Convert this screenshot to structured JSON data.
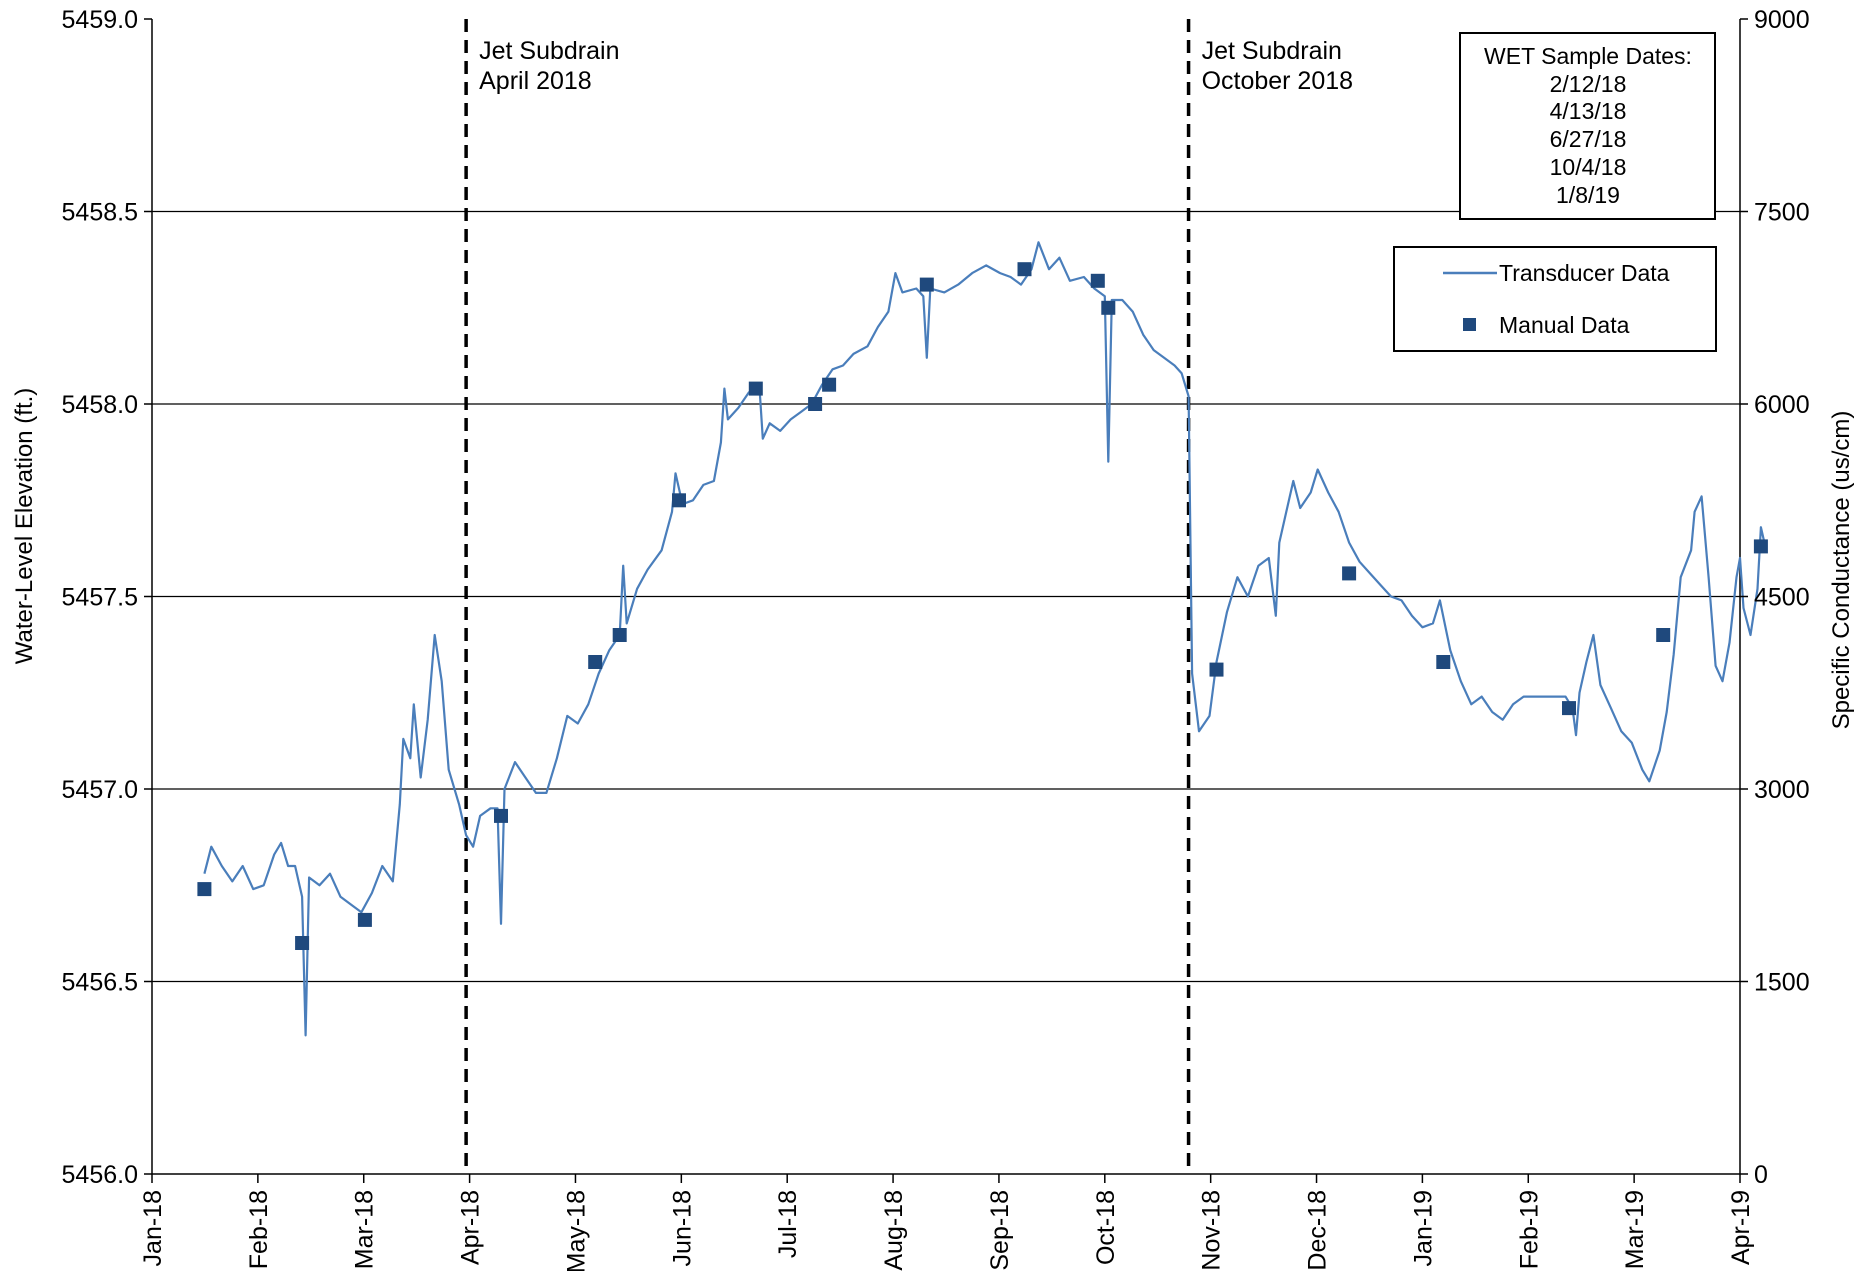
{
  "chart_data": {
    "type": "line",
    "title": "",
    "y_axis_left": {
      "label": "Water-Level Elevation (ft.)",
      "min": 5456.0,
      "max": 5459.0,
      "ticks": [
        "5456.0",
        "5456.5",
        "5457.0",
        "5457.5",
        "5458.0",
        "5458.5",
        "5459.0"
      ]
    },
    "y_axis_right": {
      "label": "Specific Conductance (us/cm)",
      "min": 0,
      "max": 9000,
      "ticks": [
        "0",
        "1500",
        "3000",
        "4500",
        "6000",
        "7500",
        "9000"
      ]
    },
    "x_axis": {
      "type": "date",
      "min": "2018-01-01",
      "max": "2019-04-01",
      "ticks": [
        "Jan-18",
        "Feb-18",
        "Mar-18",
        "Apr-18",
        "May-18",
        "Jun-18",
        "Jul-18",
        "Aug-18",
        "Sep-18",
        "Oct-18",
        "Nov-18",
        "Dec-18",
        "Jan-19",
        "Feb-19",
        "Mar-19",
        "Apr-19"
      ]
    },
    "grid": "horizontal",
    "legend": {
      "position": "top-right",
      "items": [
        "Transducer Data",
        "Manual Data"
      ]
    },
    "annotations": [
      {
        "date": "2018-04-01",
        "line1": "Jet Subdrain",
        "line2": "April 2018"
      },
      {
        "date": "2018-10-25",
        "line1": "Jet Subdrain",
        "line2": "October 2018"
      }
    ],
    "sample_box": {
      "title": "WET Sample Dates:",
      "dates": [
        "2/12/18",
        "4/13/18",
        "6/27/18",
        "10/4/18",
        "1/8/19"
      ]
    },
    "series": [
      {
        "name": "Transducer Data",
        "color": "#4a7ebb",
        "points": [
          [
            "2018-01-16",
            5456.78
          ],
          [
            "2018-01-18",
            5456.85
          ],
          [
            "2018-01-21",
            5456.8
          ],
          [
            "2018-01-24",
            5456.76
          ],
          [
            "2018-01-27",
            5456.8
          ],
          [
            "2018-01-30",
            5456.74
          ],
          [
            "2018-02-02",
            5456.75
          ],
          [
            "2018-02-05",
            5456.83
          ],
          [
            "2018-02-07",
            5456.86
          ],
          [
            "2018-02-09",
            5456.8
          ],
          [
            "2018-02-11",
            5456.8
          ],
          [
            "2018-02-13",
            5456.72
          ],
          [
            "2018-02-14",
            5456.36
          ],
          [
            "2018-02-15",
            5456.77
          ],
          [
            "2018-02-18",
            5456.75
          ],
          [
            "2018-02-21",
            5456.78
          ],
          [
            "2018-02-24",
            5456.72
          ],
          [
            "2018-02-27",
            5456.7
          ],
          [
            "2018-03-02",
            5456.68
          ],
          [
            "2018-03-05",
            5456.73
          ],
          [
            "2018-03-08",
            5456.8
          ],
          [
            "2018-03-11",
            5456.76
          ],
          [
            "2018-03-13",
            5456.96
          ],
          [
            "2018-03-14",
            5457.13
          ],
          [
            "2018-03-16",
            5457.08
          ],
          [
            "2018-03-17",
            5457.22
          ],
          [
            "2018-03-19",
            5457.03
          ],
          [
            "2018-03-21",
            5457.18
          ],
          [
            "2018-03-23",
            5457.4
          ],
          [
            "2018-03-25",
            5457.28
          ],
          [
            "2018-03-27",
            5457.05
          ],
          [
            "2018-03-30",
            5456.96
          ],
          [
            "2018-04-01",
            5456.88
          ],
          [
            "2018-04-03",
            5456.85
          ],
          [
            "2018-04-05",
            5456.93
          ],
          [
            "2018-04-08",
            5456.95
          ],
          [
            "2018-04-10",
            5456.95
          ],
          [
            "2018-04-11",
            5456.65
          ],
          [
            "2018-04-12",
            5457.0
          ],
          [
            "2018-04-15",
            5457.07
          ],
          [
            "2018-04-18",
            5457.03
          ],
          [
            "2018-04-21",
            5456.99
          ],
          [
            "2018-04-24",
            5456.99
          ],
          [
            "2018-04-27",
            5457.08
          ],
          [
            "2018-04-30",
            5457.19
          ],
          [
            "2018-05-03",
            5457.17
          ],
          [
            "2018-05-06",
            5457.22
          ],
          [
            "2018-05-09",
            5457.3
          ],
          [
            "2018-05-12",
            5457.36
          ],
          [
            "2018-05-15",
            5457.4
          ],
          [
            "2018-05-16",
            5457.58
          ],
          [
            "2018-05-17",
            5457.43
          ],
          [
            "2018-05-20",
            5457.52
          ],
          [
            "2018-05-23",
            5457.57
          ],
          [
            "2018-05-27",
            5457.62
          ],
          [
            "2018-05-30",
            5457.72
          ],
          [
            "2018-05-31",
            5457.82
          ],
          [
            "2018-06-02",
            5457.74
          ],
          [
            "2018-06-05",
            5457.75
          ],
          [
            "2018-06-08",
            5457.79
          ],
          [
            "2018-06-11",
            5457.8
          ],
          [
            "2018-06-13",
            5457.9
          ],
          [
            "2018-06-14",
            5458.04
          ],
          [
            "2018-06-15",
            5457.96
          ],
          [
            "2018-06-18",
            5457.99
          ],
          [
            "2018-06-21",
            5458.03
          ],
          [
            "2018-06-24",
            5458.05
          ],
          [
            "2018-06-25",
            5457.91
          ],
          [
            "2018-06-27",
            5457.95
          ],
          [
            "2018-06-30",
            5457.93
          ],
          [
            "2018-07-03",
            5457.96
          ],
          [
            "2018-07-06",
            5457.98
          ],
          [
            "2018-07-09",
            5458.0
          ],
          [
            "2018-07-12",
            5458.05
          ],
          [
            "2018-07-15",
            5458.09
          ],
          [
            "2018-07-18",
            5458.1
          ],
          [
            "2018-07-21",
            5458.13
          ],
          [
            "2018-07-25",
            5458.15
          ],
          [
            "2018-07-28",
            5458.2
          ],
          [
            "2018-07-31",
            5458.24
          ],
          [
            "2018-08-02",
            5458.34
          ],
          [
            "2018-08-04",
            5458.29
          ],
          [
            "2018-08-08",
            5458.3
          ],
          [
            "2018-08-10",
            5458.28
          ],
          [
            "2018-08-11",
            5458.12
          ],
          [
            "2018-08-12",
            5458.3
          ],
          [
            "2018-08-16",
            5458.29
          ],
          [
            "2018-08-20",
            5458.31
          ],
          [
            "2018-08-24",
            5458.34
          ],
          [
            "2018-08-28",
            5458.36
          ],
          [
            "2018-09-01",
            5458.34
          ],
          [
            "2018-09-04",
            5458.33
          ],
          [
            "2018-09-07",
            5458.31
          ],
          [
            "2018-09-10",
            5458.35
          ],
          [
            "2018-09-12",
            5458.42
          ],
          [
            "2018-09-15",
            5458.35
          ],
          [
            "2018-09-18",
            5458.38
          ],
          [
            "2018-09-21",
            5458.32
          ],
          [
            "2018-09-25",
            5458.33
          ],
          [
            "2018-09-28",
            5458.3
          ],
          [
            "2018-10-01",
            5458.28
          ],
          [
            "2018-10-02",
            5457.85
          ],
          [
            "2018-10-03",
            5458.27
          ],
          [
            "2018-10-06",
            5458.27
          ],
          [
            "2018-10-09",
            5458.24
          ],
          [
            "2018-10-12",
            5458.18
          ],
          [
            "2018-10-15",
            5458.14
          ],
          [
            "2018-10-18",
            5458.12
          ],
          [
            "2018-10-21",
            5458.1
          ],
          [
            "2018-10-23",
            5458.08
          ],
          [
            "2018-10-25",
            5458.02
          ],
          [
            "2018-10-26",
            5457.3
          ],
          [
            "2018-10-28",
            5457.15
          ],
          [
            "2018-10-31",
            5457.19
          ],
          [
            "2018-11-02",
            5457.33
          ],
          [
            "2018-11-05",
            5457.46
          ],
          [
            "2018-11-08",
            5457.55
          ],
          [
            "2018-11-11",
            5457.5
          ],
          [
            "2018-11-14",
            5457.58
          ],
          [
            "2018-11-17",
            5457.6
          ],
          [
            "2018-11-19",
            5457.45
          ],
          [
            "2018-11-20",
            5457.64
          ],
          [
            "2018-11-22",
            5457.72
          ],
          [
            "2018-11-24",
            5457.8
          ],
          [
            "2018-11-26",
            5457.73
          ],
          [
            "2018-11-29",
            5457.77
          ],
          [
            "2018-12-01",
            5457.83
          ],
          [
            "2018-12-04",
            5457.77
          ],
          [
            "2018-12-07",
            5457.72
          ],
          [
            "2018-12-10",
            5457.64
          ],
          [
            "2018-12-13",
            5457.59
          ],
          [
            "2018-12-16",
            5457.56
          ],
          [
            "2018-12-19",
            5457.53
          ],
          [
            "2018-12-22",
            5457.5
          ],
          [
            "2018-12-25",
            5457.49
          ],
          [
            "2018-12-28",
            5457.45
          ],
          [
            "2018-12-31",
            5457.42
          ],
          [
            "2019-01-03",
            5457.43
          ],
          [
            "2019-01-05",
            5457.49
          ],
          [
            "2019-01-08",
            5457.36
          ],
          [
            "2019-01-11",
            5457.28
          ],
          [
            "2019-01-14",
            5457.22
          ],
          [
            "2019-01-17",
            5457.24
          ],
          [
            "2019-01-20",
            5457.2
          ],
          [
            "2019-01-23",
            5457.18
          ],
          [
            "2019-01-26",
            5457.22
          ],
          [
            "2019-01-29",
            5457.24
          ],
          [
            "2019-02-02",
            5457.24
          ],
          [
            "2019-02-06",
            5457.24
          ],
          [
            "2019-02-10",
            5457.24
          ],
          [
            "2019-02-12",
            5457.21
          ],
          [
            "2019-02-13",
            5457.14
          ],
          [
            "2019-02-14",
            5457.25
          ],
          [
            "2019-02-16",
            5457.33
          ],
          [
            "2019-02-18",
            5457.4
          ],
          [
            "2019-02-20",
            5457.27
          ],
          [
            "2019-02-23",
            5457.21
          ],
          [
            "2019-02-26",
            5457.15
          ],
          [
            "2019-03-01",
            5457.12
          ],
          [
            "2019-03-04",
            5457.05
          ],
          [
            "2019-03-06",
            5457.02
          ],
          [
            "2019-03-09",
            5457.1
          ],
          [
            "2019-03-11",
            5457.2
          ],
          [
            "2019-03-13",
            5457.35
          ],
          [
            "2019-03-15",
            5457.55
          ],
          [
            "2019-03-18",
            5457.62
          ],
          [
            "2019-03-19",
            5457.72
          ],
          [
            "2019-03-21",
            5457.76
          ],
          [
            "2019-03-23",
            5457.55
          ],
          [
            "2019-03-25",
            5457.32
          ],
          [
            "2019-03-27",
            5457.28
          ],
          [
            "2019-03-29",
            5457.38
          ],
          [
            "2019-03-31",
            5457.55
          ],
          [
            "2019-04-01",
            5457.6
          ],
          [
            "2019-04-02",
            5457.47
          ],
          [
            "2019-04-04",
            5457.4
          ],
          [
            "2019-04-06",
            5457.52
          ],
          [
            "2019-04-07",
            5457.68
          ],
          [
            "2019-04-08",
            5457.64
          ]
        ]
      },
      {
        "name": "Manual Data",
        "color": "#1f497d",
        "points": [
          [
            "2018-01-16",
            5456.74
          ],
          [
            "2018-02-13",
            5456.6
          ],
          [
            "2018-03-03",
            5456.66
          ],
          [
            "2018-04-11",
            5456.93
          ],
          [
            "2018-05-08",
            5457.33
          ],
          [
            "2018-05-15",
            5457.4
          ],
          [
            "2018-06-01",
            5457.75
          ],
          [
            "2018-06-23",
            5458.04
          ],
          [
            "2018-07-10",
            5458.0
          ],
          [
            "2018-07-14",
            5458.05
          ],
          [
            "2018-08-11",
            5458.31
          ],
          [
            "2018-09-08",
            5458.35
          ],
          [
            "2018-09-29",
            5458.32
          ],
          [
            "2018-10-02",
            5458.25
          ],
          [
            "2018-11-02",
            5457.31
          ],
          [
            "2018-12-10",
            5457.56
          ],
          [
            "2019-01-06",
            5457.33
          ],
          [
            "2019-02-11",
            5457.21
          ],
          [
            "2019-03-10",
            5457.4
          ],
          [
            "2019-04-07",
            5457.63
          ]
        ]
      }
    ]
  }
}
